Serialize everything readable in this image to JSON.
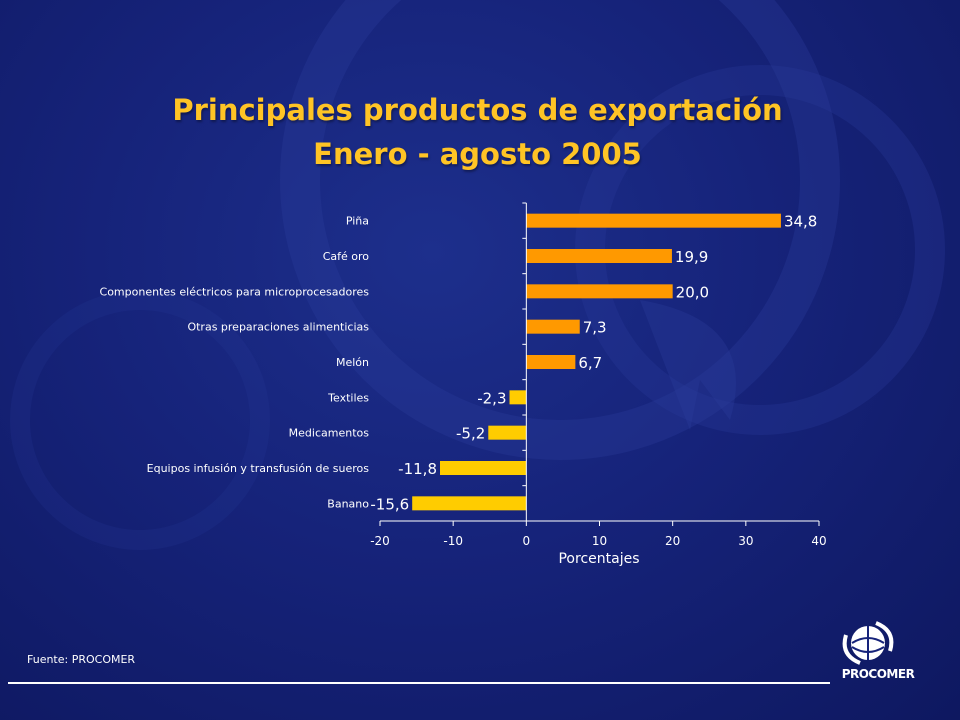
{
  "slide": {
    "title_line1": "Principales productos de exportación",
    "title_line2": "Enero - agosto 2005",
    "source": "Fuente: PROCOMER",
    "logo_text": "PROCOMER"
  },
  "colors": {
    "positive_bar": "#ff9900",
    "negative_bar": "#ffcc00",
    "axis": "#ffffff",
    "title": "#ffc425"
  },
  "chart_data": {
    "type": "bar",
    "orientation": "horizontal",
    "title": "",
    "xlabel": "Porcentajes",
    "ylabel": "",
    "xlim": [
      -20,
      40
    ],
    "xticks": [
      -20,
      -10,
      0,
      10,
      20,
      30,
      40
    ],
    "grid": false,
    "categories": [
      "Piña",
      "Café oro",
      "Componentes eléctricos para microprocesadores",
      "Otras preparaciones alimenticias",
      "Melón",
      "Textiles",
      "Medicamentos",
      "Equipos infusión y transfusión de sueros",
      "Banano"
    ],
    "values": [
      34.8,
      19.9,
      20.0,
      7.3,
      6.7,
      -2.3,
      -5.2,
      -11.8,
      -15.6
    ],
    "value_labels": [
      "34,8",
      "19,9",
      "20,0",
      "7,3",
      "6,7",
      "-2,3",
      "-5,2",
      "-11,8",
      "-15,6"
    ]
  }
}
